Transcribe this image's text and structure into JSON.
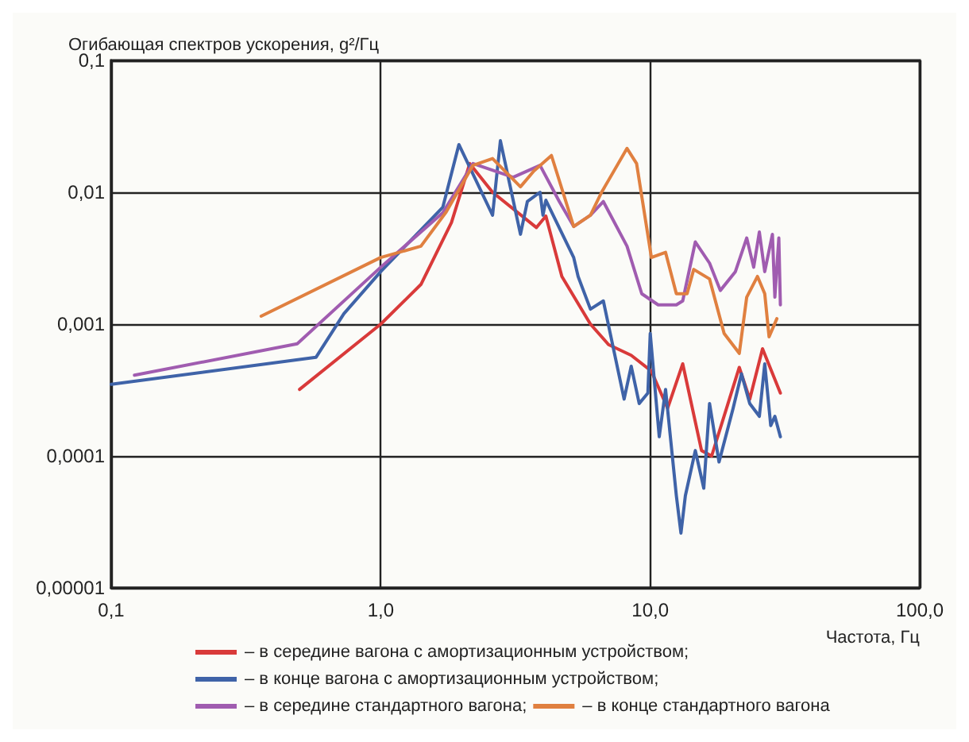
{
  "chart_data": {
    "type": "line",
    "ylabel": "Огибающая спектров ускорения, g²/Гц",
    "xlabel": "Частота, Гц",
    "log": "xy",
    "grid": true,
    "legend": "bottom",
    "marker": "none",
    "line_style": "solid",
    "xlim": [
      0.1,
      100
    ],
    "xticks": [
      {
        "value": 0.1,
        "label": "0,1"
      },
      {
        "value": 1,
        "label": "1,0"
      },
      {
        "value": 10,
        "label": "10,0"
      },
      {
        "value": 100,
        "label": "100,0"
      }
    ],
    "ylim": [
      1e-05,
      0.1
    ],
    "yticks": [
      {
        "value": 1e-05,
        "label": "0,00001"
      },
      {
        "value": 0.0001,
        "label": "0,0001"
      },
      {
        "value": 0.001,
        "label": "0,001"
      },
      {
        "value": 0.01,
        "label": "0,01"
      },
      {
        "value": 0.1,
        "label": "0,1"
      }
    ],
    "series": [
      {
        "name": "– в середине вагона с амортизационным устройством;",
        "color": "#d93a3a",
        "x": [
          0.5,
          1.0,
          1.41,
          1.83,
          2.14,
          2.6,
          3.78,
          4.1,
          4.7,
          6.0,
          7.0,
          8.5,
          10.1,
          11.6,
          13.2,
          15.5,
          16.9,
          21.4,
          23.4,
          26.1,
          30.4
        ],
        "values": [
          0.00032,
          0.001,
          0.002,
          0.0059,
          0.0165,
          0.01,
          0.0054,
          0.0066,
          0.0023,
          0.001,
          0.0007,
          0.00058,
          0.00044,
          0.00023,
          0.0005,
          0.00011,
          0.0001,
          0.00047,
          0.00027,
          0.00065,
          0.0003
        ]
      },
      {
        "name": "– в конце вагона с амортизационным устройством;",
        "color": "#3f63a8",
        "x": [
          0.1,
          0.575,
          0.73,
          1.0,
          1.7,
          1.95,
          2.6,
          2.78,
          3.3,
          3.5,
          3.9,
          4.0,
          4.1,
          5.2,
          5.4,
          6.0,
          6.7,
          8.0,
          8.5,
          9.1,
          9.8,
          10,
          10.8,
          11.4,
          12.5,
          13.0,
          13.5,
          14.7,
          15.8,
          16.6,
          18,
          20.3,
          21.8,
          23.4,
          25.4,
          26.6,
          28,
          29,
          30.4
        ],
        "values": [
          0.00035,
          0.00056,
          0.0012,
          0.0025,
          0.0077,
          0.023,
          0.0067,
          0.0246,
          0.0048,
          0.0085,
          0.01,
          0.0067,
          0.0087,
          0.0032,
          0.0023,
          0.0013,
          0.0015,
          0.00027,
          0.00048,
          0.00025,
          0.0003,
          0.00085,
          0.00014,
          0.00032,
          5e-05,
          2.6e-05,
          5e-05,
          0.00011,
          5.7e-05,
          0.00025,
          9e-05,
          0.00023,
          0.00042,
          0.00025,
          0.0002,
          0.0005,
          0.00017,
          0.0002,
          0.00014
        ]
      },
      {
        "name": "– в середине стандартного вагона;",
        "color": "#a05cb0",
        "x": [
          0.122,
          0.49,
          1.0,
          1.7,
          2.2,
          3.1,
          3.9,
          4.6,
          5.2,
          6.0,
          6.7,
          8.2,
          9.3,
          10.7,
          12.5,
          13.2,
          14.7,
          16.6,
          18.2,
          20.7,
          22.8,
          24.2,
          25.4,
          26.6,
          28.4,
          29,
          30,
          30.4
        ],
        "values": [
          0.00041,
          0.00071,
          0.0027,
          0.007,
          0.0165,
          0.013,
          0.016,
          0.0085,
          0.0055,
          0.0067,
          0.0085,
          0.0039,
          0.0017,
          0.0014,
          0.0014,
          0.0015,
          0.0042,
          0.0029,
          0.0018,
          0.0025,
          0.0045,
          0.0027,
          0.005,
          0.0025,
          0.0048,
          0.0016,
          0.0045,
          0.0014
        ]
      },
      {
        "name": "– в конце стандартного вагона",
        "color": "#e08040",
        "x": [
          0.36,
          1.0,
          1.41,
          1.75,
          2.2,
          2.6,
          3.3,
          3.7,
          4.3,
          5.2,
          6.0,
          6.6,
          8.2,
          8.9,
          10.1,
          11.4,
          12.5,
          13.7,
          14.5,
          16.6,
          18.8,
          21.4,
          22.8,
          25,
          26.6,
          27.6,
          29.5
        ],
        "values": [
          0.00115,
          0.0032,
          0.0039,
          0.0071,
          0.016,
          0.018,
          0.011,
          0.0145,
          0.019,
          0.0055,
          0.0067,
          0.01,
          0.0215,
          0.0165,
          0.0032,
          0.0035,
          0.0017,
          0.0017,
          0.0026,
          0.0022,
          0.00085,
          0.0006,
          0.0016,
          0.0023,
          0.0017,
          0.0008,
          0.0011
        ]
      }
    ]
  }
}
